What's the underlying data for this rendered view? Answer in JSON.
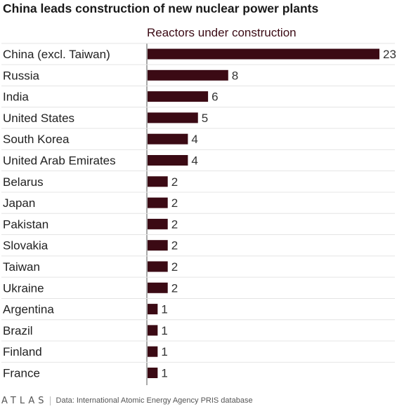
{
  "chart_data": {
    "type": "bar",
    "orientation": "horizontal",
    "title": "China leads construction of new nuclear power plants",
    "series_label": "Reactors under construction",
    "categories": [
      "China (excl. Taiwan)",
      "Russia",
      "India",
      "United States",
      "South Korea",
      "United Arab Emirates",
      "Belarus",
      "Japan",
      "Pakistan",
      "Slovakia",
      "Taiwan",
      "Ukraine",
      "Argentina",
      "Brazil",
      "Finland",
      "France"
    ],
    "values": [
      23,
      8,
      6,
      5,
      4,
      4,
      2,
      2,
      2,
      2,
      2,
      2,
      1,
      1,
      1,
      1
    ],
    "xlim": [
      0,
      23
    ],
    "grid": false,
    "legend": "none",
    "bar_color": "#3b0a14"
  },
  "footer": {
    "brand": "ATLAS",
    "source": "Data: International Atomic Energy Agency PRIS database"
  }
}
